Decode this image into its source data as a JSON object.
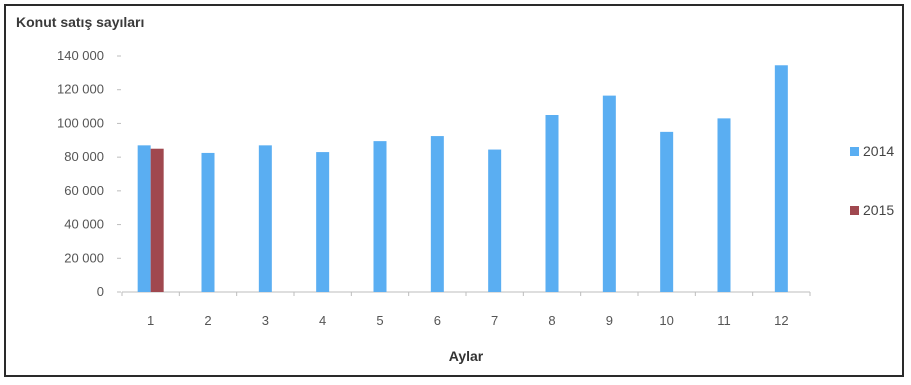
{
  "chart_data": {
    "type": "bar",
    "title": "Konut satış sayıları",
    "xlabel": "Aylar",
    "ylabel": "",
    "ylim": [
      0,
      140000
    ],
    "yticks": [
      0,
      20000,
      40000,
      60000,
      80000,
      100000,
      120000,
      140000
    ],
    "ytick_labels": [
      "0",
      "20 000",
      "40 000",
      "60 000",
      "80 000",
      "100 000",
      "120 000",
      "140 000"
    ],
    "categories": [
      "1",
      "2",
      "3",
      "4",
      "5",
      "6",
      "7",
      "8",
      "9",
      "10",
      "11",
      "12"
    ],
    "series": [
      {
        "name": "2014",
        "color": "#5aaef2",
        "values": [
          87000,
          82500,
          87000,
          83000,
          89500,
          92500,
          84500,
          105000,
          116500,
          95000,
          103000,
          134500
        ]
      },
      {
        "name": "2015",
        "color": "#a0484f",
        "values": [
          85000,
          null,
          null,
          null,
          null,
          null,
          null,
          null,
          null,
          null,
          null,
          null
        ]
      }
    ],
    "legend_position": "right",
    "grid": false
  }
}
